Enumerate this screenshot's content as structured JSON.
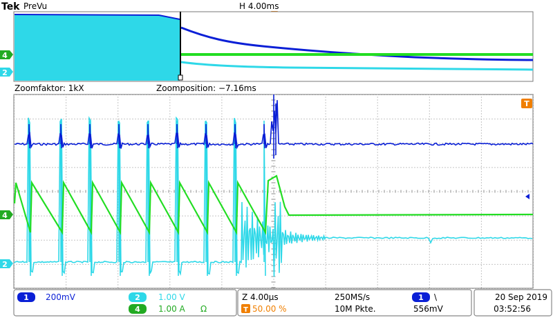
{
  "header": {
    "brand": "Tek",
    "mode": "PreVu",
    "horizontal_scale": "H 4.00ms",
    "trigger_marker": "T"
  },
  "zoom_info": {
    "zoom_factor": "Zoomfaktor: 1kX",
    "zoom_position": "Zoomposition: −7.16ms"
  },
  "channel_markers": {
    "ch4": "4",
    "ch2": "2"
  },
  "status": {
    "ch1": {
      "num": "1",
      "scale": "200mV"
    },
    "ch2": {
      "num": "2",
      "scale": "1.00 V"
    },
    "ch4": {
      "num": "4",
      "scale": "1.00 A",
      "unit_symbol": "Ω"
    },
    "timebase": {
      "zoom_time": "Z 4.00µs",
      "trigger_pos": "50.00 %",
      "sample_rate": "250MS/s",
      "record_length": "10M Pkte."
    },
    "trigger": {
      "source": "1",
      "slope_symbol": "\\",
      "level": "556mV"
    },
    "datetime": {
      "date": "20 Sep  2019",
      "time": "03:52:56"
    }
  },
  "colors": {
    "ch1": "#0a1fd6",
    "ch2": "#2ed8e8",
    "ch4": "#22dd22",
    "trigger": "#f07f00",
    "graticule": "#8a8a8a"
  },
  "icons": {
    "trigger_marker": "trigger-t-icon",
    "trigger_level_arrow": "left-arrow-icon"
  }
}
